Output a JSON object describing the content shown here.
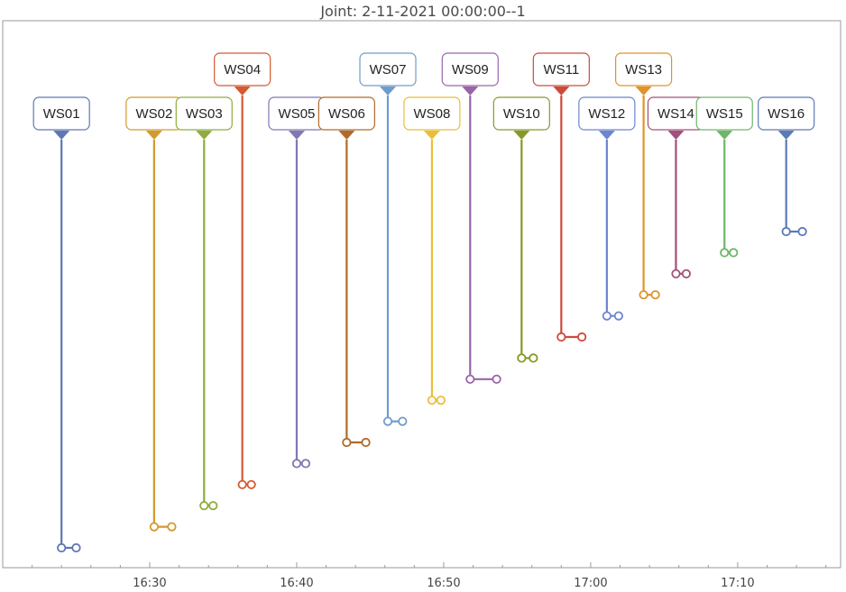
{
  "chart_data": {
    "type": "timeline",
    "title": "Joint: 2-11-2021 00:00:00--1",
    "xlabel": "",
    "ylabel": "",
    "x_tick_labels": [
      "16:30",
      "16:40",
      "16:50",
      "17:00",
      "17:10"
    ],
    "x_range_minutes": [
      "16:20",
      "17:17"
    ],
    "colors": {
      "frame": "#999999",
      "axis_text": "#444444"
    },
    "events": [
      {
        "label": "WS01",
        "time": "16:24.0",
        "end": "16:25.0",
        "color": "#5e77b3",
        "tier": 1
      },
      {
        "label": "WS02",
        "time": "16:30.3",
        "end": "16:31.5",
        "color": "#d19a2f",
        "tier": 1
      },
      {
        "label": "WS03",
        "time": "16:33.7",
        "end": "16:34.1",
        "color": "#8fac3c",
        "tier": 1
      },
      {
        "label": "WS04",
        "time": "16:36.3",
        "end": "16:36.6",
        "color": "#d45a30",
        "tier": 2
      },
      {
        "label": "WS05",
        "time": "16:40.0",
        "end": "16:40.6",
        "color": "#7f78b2",
        "tier": 1
      },
      {
        "label": "WS06",
        "time": "16:43.4",
        "end": "16:44.7",
        "color": "#b06a2a",
        "tier": 1
      },
      {
        "label": "WS07",
        "time": "16:46.2",
        "end": "16:47.2",
        "color": "#6f9ccc",
        "tier": 2
      },
      {
        "label": "WS08",
        "time": "16:49.2",
        "end": "16:49.6",
        "color": "#ebbe3a",
        "tier": 1
      },
      {
        "label": "WS09",
        "time": "16:51.8",
        "end": "16:53.6",
        "color": "#9a64a8",
        "tier": 2
      },
      {
        "label": "WS10",
        "time": "16:55.3",
        "end": "16:56.1",
        "color": "#869a28",
        "tier": 1
      },
      {
        "label": "WS11",
        "time": "16:58.0",
        "end": "16:59.4",
        "color": "#cc4a3a",
        "tier": 2
      },
      {
        "label": "WS12",
        "time": "17:01.1",
        "end": "17:01.9",
        "color": "#6b85cf",
        "tier": 1
      },
      {
        "label": "WS13",
        "time": "17:03.6",
        "end": "17:04.4",
        "color": "#e0932a",
        "tier": 2
      },
      {
        "label": "WS14",
        "time": "17:05.8",
        "end": "17:06.5",
        "color": "#a2507c",
        "tier": 1
      },
      {
        "label": "WS15",
        "time": "17:09.1",
        "end": "17:09.2",
        "color": "#6fb66b",
        "tier": 1
      },
      {
        "label": "WS16",
        "time": "17:13.3",
        "end": "17:14.4",
        "color": "#5a7ab5",
        "tier": 1
      }
    ]
  }
}
